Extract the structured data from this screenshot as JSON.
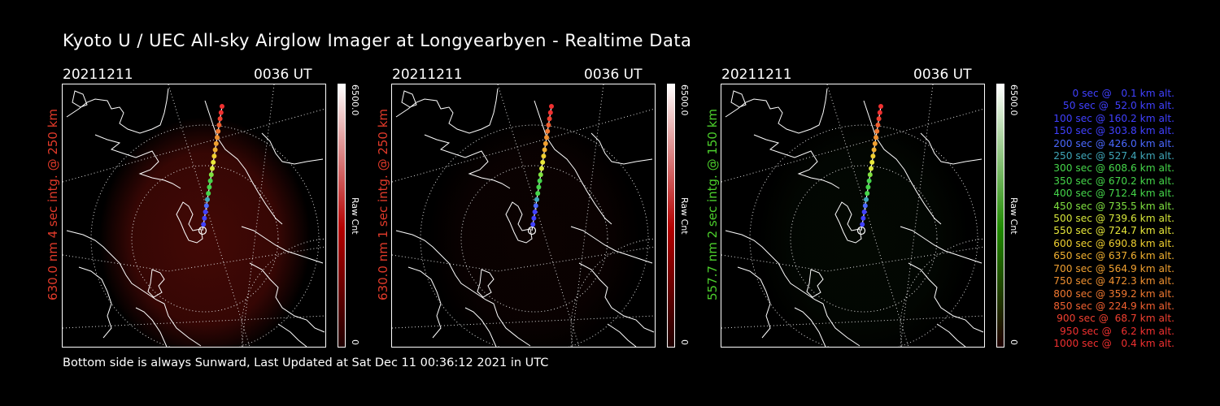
{
  "title": "Kyoto U / UEC All-sky Airglow Imager at Longyearbyen - Realtime Data",
  "footer": "Bottom side is always Sunward, Last Updated at Sat Dec 11 00:36:12 2021 in UTC",
  "panels": [
    {
      "date": "20211211",
      "time": "0036 UT",
      "label": "630.0 nm 4 sec intg. @ 250 km",
      "label_color": "#e23a2a",
      "cbar_max": "6500.0",
      "cbar_unit": "Raw Cnt",
      "cbar_min": "0",
      "cbar_color": "#b40000",
      "glow_color": "#7a0f0a",
      "glow_level": 0.55
    },
    {
      "date": "20211211",
      "time": "0036 UT",
      "label": "630.0 nm 1 sec intg. @ 250 km",
      "label_color": "#e23a2a",
      "cbar_max": "6500.0",
      "cbar_unit": "Raw Cnt",
      "cbar_min": "0",
      "cbar_color": "#b40000",
      "glow_color": "#3a0806",
      "glow_level": 0.2
    },
    {
      "date": "20211211",
      "time": "0036 UT",
      "label": "557.7 nm 2 sec intg. @ 150 km",
      "label_color": "#4ccf2c",
      "cbar_max": "6500.0",
      "cbar_unit": "Raw Cnt",
      "cbar_min": "0",
      "cbar_color": "#1f8a00",
      "glow_color": "#0c2008",
      "glow_level": 0.25
    }
  ],
  "legend": [
    {
      "text": "   0 sec @   0.1 km alt.",
      "color": "#4040ff"
    },
    {
      "text": "  50 sec @  52.0 km alt.",
      "color": "#4040ff"
    },
    {
      "text": " 100 sec @ 160.2 km alt.",
      "color": "#4040ff"
    },
    {
      "text": " 150 sec @ 303.8 km alt.",
      "color": "#4040ff"
    },
    {
      "text": " 200 sec @ 426.0 km alt.",
      "color": "#4a68ff"
    },
    {
      "text": " 250 sec @ 527.4 km alt.",
      "color": "#3fa6b8"
    },
    {
      "text": " 300 sec @ 608.6 km alt.",
      "color": "#45d64a"
    },
    {
      "text": " 350 sec @ 670.2 km alt.",
      "color": "#45d64a"
    },
    {
      "text": " 400 sec @ 712.4 km alt.",
      "color": "#45d64a"
    },
    {
      "text": " 450 sec @ 735.5 km alt.",
      "color": "#7fe040"
    },
    {
      "text": " 500 sec @ 739.6 km alt.",
      "color": "#d6e63a"
    },
    {
      "text": " 550 sec @ 724.7 km alt.",
      "color": "#e8e83a"
    },
    {
      "text": " 600 sec @ 690.8 km alt.",
      "color": "#f0d030"
    },
    {
      "text": " 650 sec @ 637.6 km alt.",
      "color": "#f0b030"
    },
    {
      "text": " 700 sec @ 564.9 km alt.",
      "color": "#f0a030"
    },
    {
      "text": " 750 sec @ 472.3 km alt.",
      "color": "#f09030"
    },
    {
      "text": " 800 sec @ 359.2 km alt.",
      "color": "#f07830"
    },
    {
      "text": " 850 sec @ 224.9 km alt.",
      "color": "#f06030"
    },
    {
      "text": " 900 sec @  68.7 km alt.",
      "color": "#f04030"
    },
    {
      "text": " 950 sec @   6.2 km alt.",
      "color": "#f03030"
    },
    {
      "text": "1000 sec @   0.4 km alt.",
      "color": "#f03030"
    }
  ]
}
